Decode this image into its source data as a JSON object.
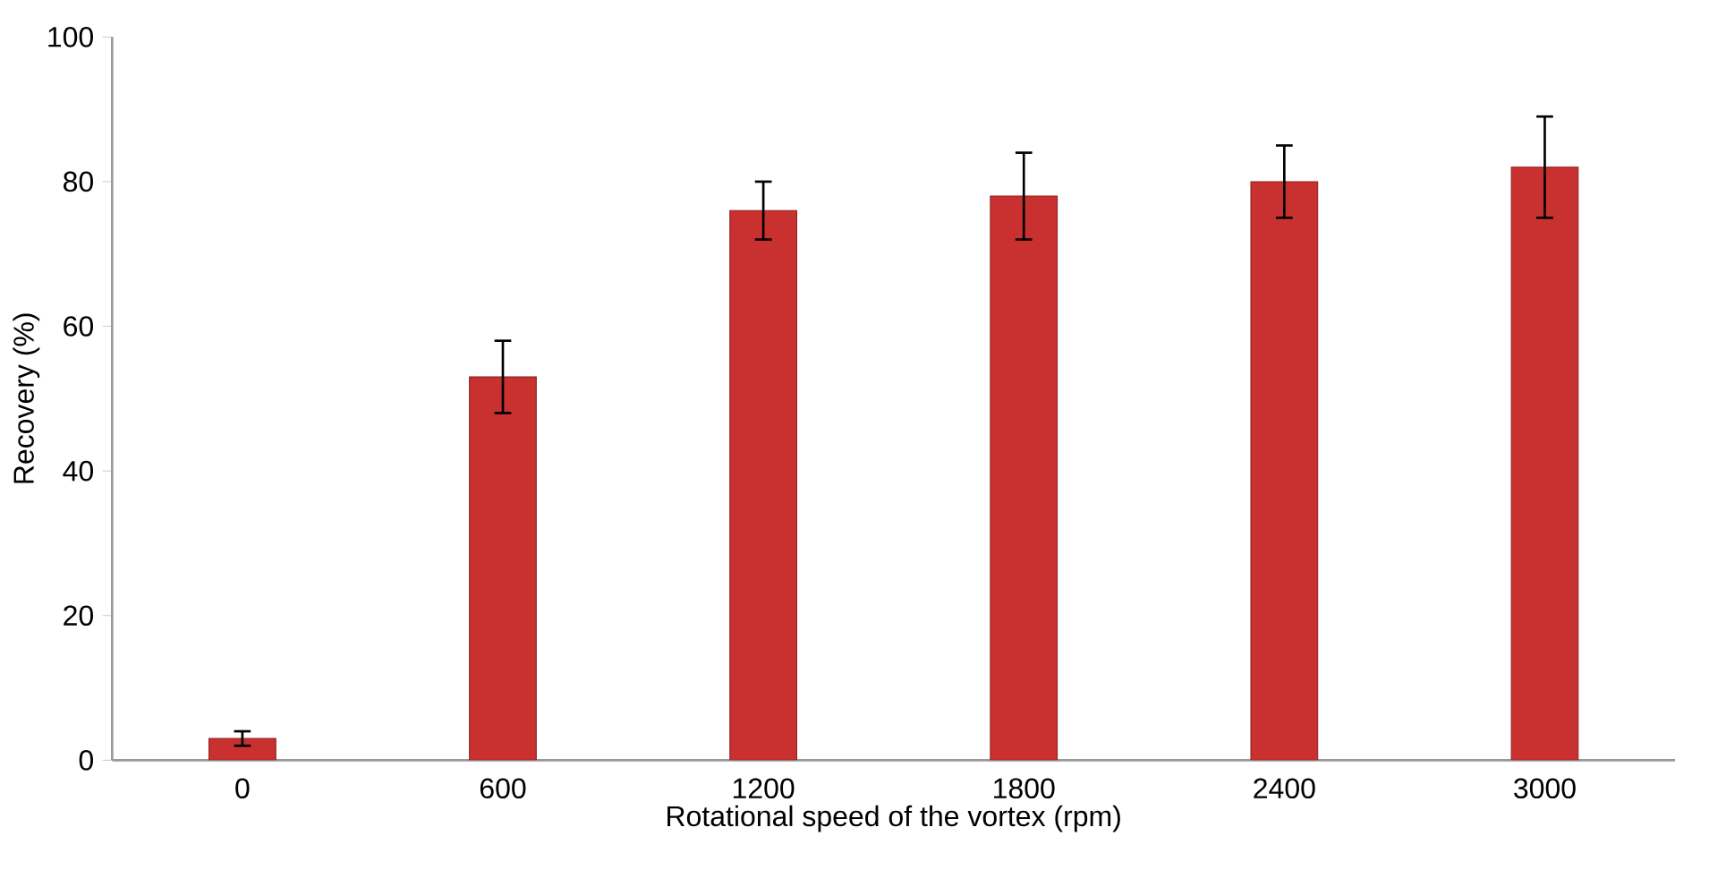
{
  "chart_data": {
    "type": "bar",
    "xlabel": "Rotational speed of the vortex (rpm)",
    "ylabel": "Recovery (%)",
    "categories": [
      "0",
      "600",
      "1200",
      "1800",
      "2400",
      "3000"
    ],
    "values": [
      3,
      53,
      76,
      78,
      80,
      82
    ],
    "errors": [
      [
        2,
        4
      ],
      [
        48,
        58
      ],
      [
        72,
        80
      ],
      [
        72,
        84
      ],
      [
        75,
        85
      ],
      [
        75,
        89
      ]
    ],
    "color": "#c8312f",
    "ylim": [
      0,
      100
    ],
    "yticks": [
      0,
      20,
      40,
      60,
      80,
      100
    ],
    "grid": false
  }
}
